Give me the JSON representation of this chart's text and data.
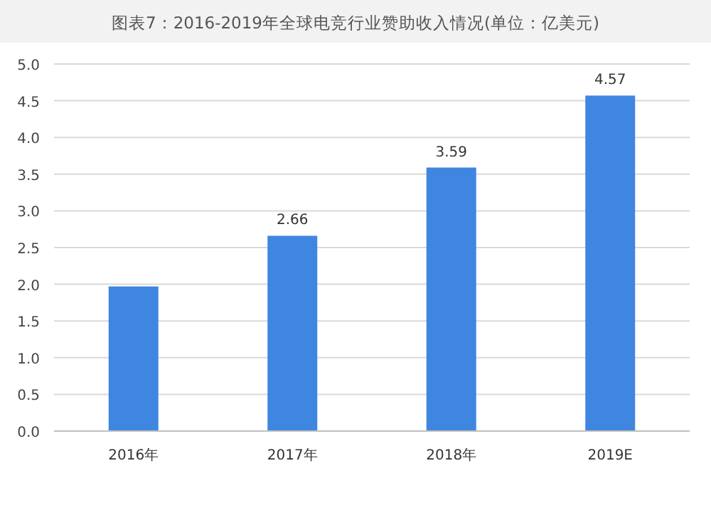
{
  "chart_data": {
    "type": "bar",
    "title": "图表7：2016-2019年全球电竞行业赞助收入情况(单位：亿美元)",
    "categories": [
      "2016年",
      "2017年",
      "2018年",
      "2019E"
    ],
    "values": [
      1.97,
      2.66,
      3.59,
      4.57
    ],
    "value_labels": [
      null,
      "2.66",
      "3.59",
      "4.57"
    ],
    "color": "#3f86e0",
    "ylim": [
      0,
      5
    ],
    "yticks": [
      {
        "value": 0,
        "label": "0.0"
      },
      {
        "value": 0.5,
        "label": "0.5"
      },
      {
        "value": 1,
        "label": "1.0"
      },
      {
        "value": 1.5,
        "label": "1.5"
      },
      {
        "value": 2,
        "label": "2.0"
      },
      {
        "value": 2.5,
        "label": "2.5"
      },
      {
        "value": 3,
        "label": "3.0"
      },
      {
        "value": 3.5,
        "label": "3.5"
      },
      {
        "value": 4,
        "label": "4.0"
      },
      {
        "value": 4.5,
        "label": "4.5"
      },
      {
        "value": 5,
        "label": "5.0"
      }
    ],
    "grid": "y"
  }
}
